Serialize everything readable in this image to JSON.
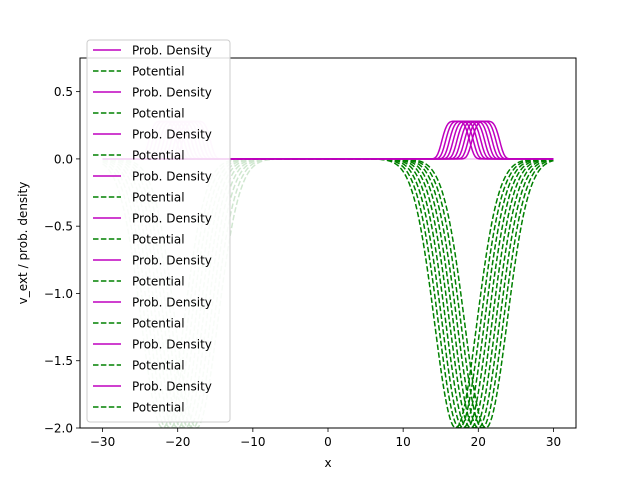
{
  "chart_data": {
    "type": "line",
    "title": "",
    "xlabel": "x",
    "ylabel": "v_ext / prob. density",
    "xlim": [
      -33,
      33
    ],
    "ylim": [
      -2.0,
      0.75
    ],
    "xticks": [
      -30,
      -20,
      -10,
      0,
      10,
      20,
      30
    ],
    "yticks": [
      -2.0,
      -1.5,
      -1.0,
      -0.5,
      0.0,
      0.5
    ],
    "xtick_labels": [
      "−30",
      "−20",
      "−10",
      "0",
      "10",
      "20",
      "30"
    ],
    "ytick_labels": [
      "−2.0",
      "−1.5",
      "−1.0",
      "−0.5",
      "0.0",
      "0.5"
    ],
    "grid": false,
    "legend_position": "upper left",
    "potential_depth": -2.0,
    "density_peak": 0.28,
    "x_range": [
      -30,
      30
    ],
    "faded_group": {
      "opacity": 0.18,
      "well_centers": [
        -22,
        -21.5,
        -21,
        -20.5,
        -20,
        -19.5,
        -19,
        -18.5,
        -18,
        -17.5
      ],
      "density_centers": [
        -22,
        -21.5,
        -21,
        -20.5,
        -20,
        -19.5,
        -19,
        -18.5,
        -18,
        -17.5
      ]
    },
    "solid_group": {
      "opacity": 1.0,
      "well_centers": [
        17,
        17.5,
        18,
        18.5,
        19,
        19.5,
        20,
        20.5,
        21
      ],
      "density_centers": [
        17,
        17.5,
        18,
        18.5,
        19,
        19.5,
        20,
        20.5,
        21
      ]
    },
    "series": [
      {
        "name": "Prob. Density",
        "color": "#bf00bf",
        "style": "solid"
      },
      {
        "name": "Potential",
        "color": "#008000",
        "style": "dashed"
      },
      {
        "name": "Prob. Density",
        "color": "#bf00bf",
        "style": "solid"
      },
      {
        "name": "Potential",
        "color": "#008000",
        "style": "dashed"
      },
      {
        "name": "Prob. Density",
        "color": "#bf00bf",
        "style": "solid"
      },
      {
        "name": "Potential",
        "color": "#008000",
        "style": "dashed"
      },
      {
        "name": "Prob. Density",
        "color": "#bf00bf",
        "style": "solid"
      },
      {
        "name": "Potential",
        "color": "#008000",
        "style": "dashed"
      },
      {
        "name": "Prob. Density",
        "color": "#bf00bf",
        "style": "solid"
      },
      {
        "name": "Potential",
        "color": "#008000",
        "style": "dashed"
      },
      {
        "name": "Prob. Density",
        "color": "#bf00bf",
        "style": "solid"
      },
      {
        "name": "Potential",
        "color": "#008000",
        "style": "dashed"
      },
      {
        "name": "Prob. Density",
        "color": "#bf00bf",
        "style": "solid"
      },
      {
        "name": "Potential",
        "color": "#008000",
        "style": "dashed"
      },
      {
        "name": "Prob. Density",
        "color": "#bf00bf",
        "style": "solid"
      },
      {
        "name": "Potential",
        "color": "#008000",
        "style": "dashed"
      },
      {
        "name": "Prob. Density",
        "color": "#bf00bf",
        "style": "solid"
      },
      {
        "name": "Potential",
        "color": "#008000",
        "style": "dashed"
      }
    ]
  }
}
